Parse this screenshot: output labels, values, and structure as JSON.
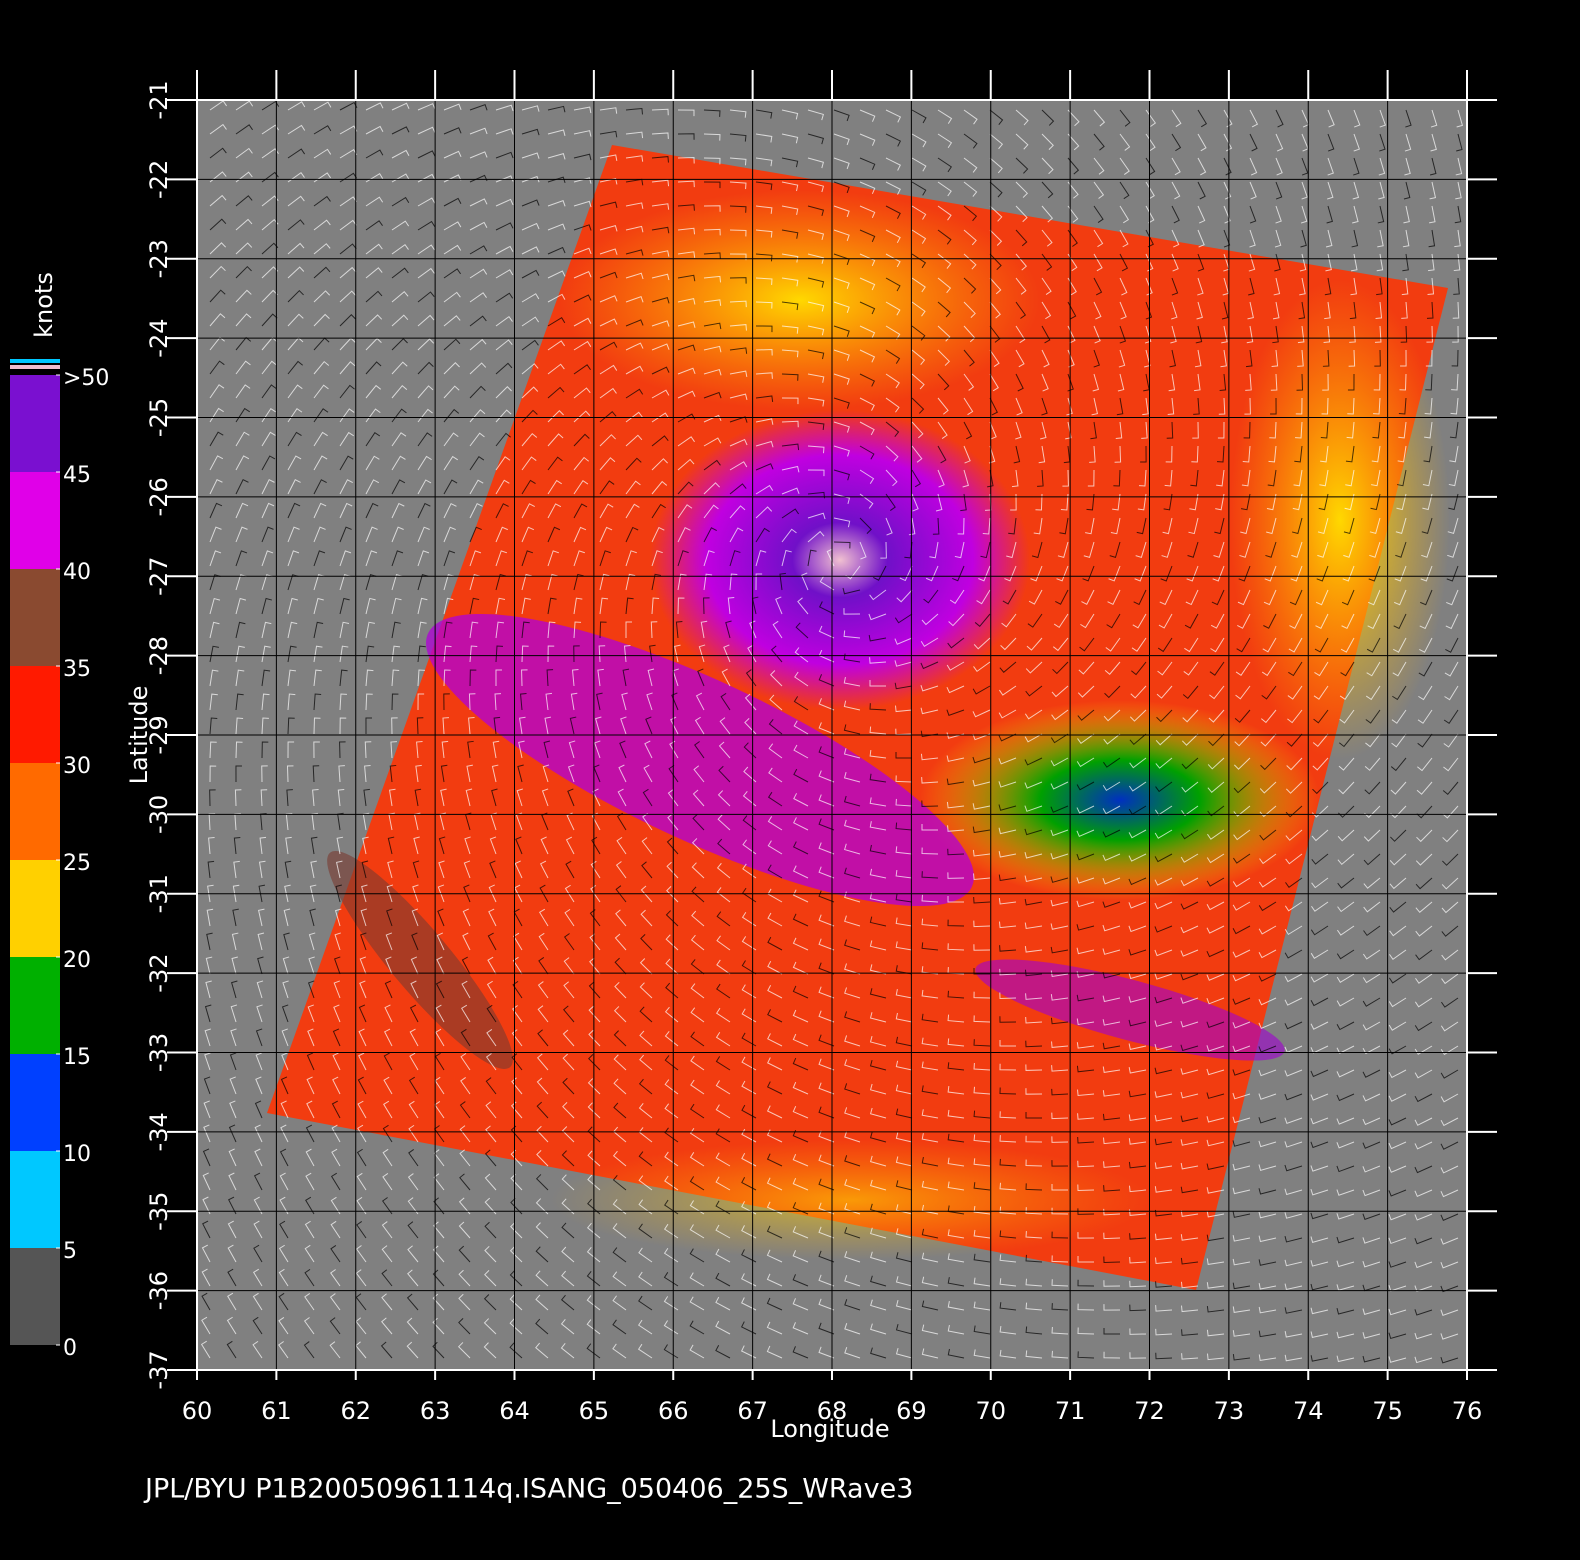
{
  "chart_data": {
    "type": "map",
    "footer": "JPL/BYU  P1B20050961114q.ISANG_050406_25S_WRave3",
    "x_label": "Longitude",
    "y_label": "Latitude",
    "xlim": [
      60,
      76
    ],
    "ylim": [
      -37,
      -21
    ],
    "xticks": [
      60,
      61,
      62,
      63,
      64,
      65,
      66,
      67,
      68,
      69,
      70,
      71,
      72,
      73,
      74,
      75,
      76
    ],
    "yticks": [
      -21,
      -22,
      -23,
      -24,
      -25,
      -26,
      -27,
      -28,
      -29,
      -30,
      -31,
      -32,
      -33,
      -34,
      -35,
      -36,
      -37
    ],
    "grid": true,
    "colorbar": {
      "label": "knots",
      "lim": [
        0,
        50
      ],
      "ticks": [
        {
          "value": 50,
          "label": ">50"
        },
        45,
        40,
        35,
        30,
        25,
        20,
        15,
        10,
        5,
        0
      ],
      "colors": [
        "#555555",
        "#00c8ff",
        "#0040ff",
        "#00b000",
        "#ffd000",
        "#ff6a00",
        "#ff1a00",
        "#8a4a30",
        "#e000e8",
        "#7a10d0"
      ]
    }
  }
}
